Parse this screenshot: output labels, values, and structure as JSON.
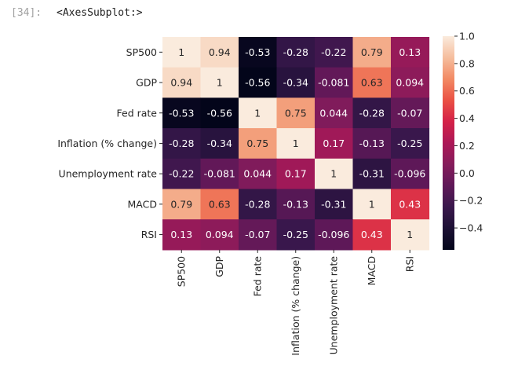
{
  "cell": {
    "prompt": "[34]:",
    "output_repr": "<AxesSubplot:>"
  },
  "chart_data": {
    "type": "heatmap",
    "rows": [
      "SP500",
      "GDP",
      "Fed rate",
      "Inflation (% change)",
      "Unemployment rate",
      "MACD",
      "RSI"
    ],
    "columns": [
      "SP500",
      "GDP",
      "Fed rate",
      "Inflation (% change)",
      "Unemployment rate",
      "MACD",
      "RSI"
    ],
    "values": [
      [
        1,
        0.94,
        -0.53,
        -0.28,
        -0.22,
        0.79,
        0.13
      ],
      [
        0.94,
        1,
        -0.56,
        -0.34,
        -0.081,
        0.63,
        0.094
      ],
      [
        -0.53,
        -0.56,
        1,
        0.75,
        0.044,
        -0.28,
        -0.07
      ],
      [
        -0.28,
        -0.34,
        0.75,
        1,
        0.17,
        -0.13,
        -0.25
      ],
      [
        -0.22,
        -0.081,
        0.044,
        0.17,
        1,
        -0.31,
        -0.096
      ],
      [
        0.79,
        0.63,
        -0.28,
        -0.13,
        -0.31,
        1,
        0.43
      ],
      [
        0.13,
        0.094,
        -0.07,
        -0.25,
        -0.096,
        0.43,
        1
      ]
    ],
    "annotation_labels": [
      [
        "1",
        "0.94",
        "-0.53",
        "-0.28",
        "-0.22",
        "0.79",
        "0.13"
      ],
      [
        "0.94",
        "1",
        "-0.56",
        "-0.34",
        "-0.081",
        "0.63",
        "0.094"
      ],
      [
        "-0.53",
        "-0.56",
        "1",
        "0.75",
        "0.044",
        "-0.28",
        "-0.07"
      ],
      [
        "-0.28",
        "-0.34",
        "0.75",
        "1",
        "0.17",
        "-0.13",
        "-0.25"
      ],
      [
        "-0.22",
        "-0.081",
        "0.044",
        "0.17",
        "1",
        "-0.31",
        "-0.096"
      ],
      [
        "0.79",
        "0.63",
        "-0.28",
        "-0.13",
        "-0.31",
        "1",
        "0.43"
      ],
      [
        "0.13",
        "0.094",
        "-0.07",
        "-0.25",
        "-0.096",
        "0.43",
        "1"
      ]
    ],
    "colormap": "rocket",
    "vmin": -0.56,
    "vmax": 1.0,
    "colorbar_ticks": [
      1.0,
      0.8,
      0.6,
      0.4,
      0.2,
      0.0,
      -0.2,
      -0.4
    ],
    "colorbar_tick_labels": [
      "1.0",
      "0.8",
      "0.6",
      "0.4",
      "0.2",
      "0.0",
      "−0.2",
      "−0.4"
    ],
    "title": "",
    "xlabel": "",
    "ylabel": ""
  }
}
